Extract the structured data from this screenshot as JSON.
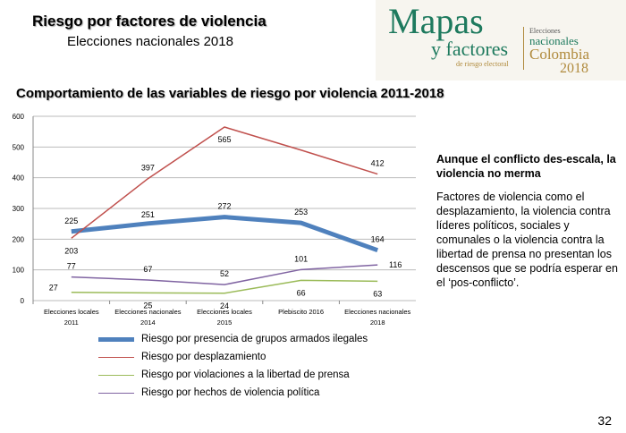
{
  "header": {
    "title": "Riesgo por factores de violencia",
    "subtitle": "Elecciones nacionales 2018"
  },
  "logo": {
    "line1": "Mapas",
    "line2": "y factores",
    "line3": "de riesgo electoral",
    "line4": "Elecciones",
    "line5": "nacionales",
    "line6": "Colombia",
    "line7": "2018"
  },
  "chart_data": {
    "type": "line",
    "title": "Comportamiento de las variables de riesgo por violencia 2011-2018",
    "categories": [
      [
        "Elecciones  locales",
        "2011"
      ],
      [
        "Elecciones nacionales",
        "2014"
      ],
      [
        "Elecciones  locales",
        "2015"
      ],
      [
        "Plebiscito 2016",
        ""
      ],
      [
        "Elecciones nacionales",
        "2018"
      ]
    ],
    "ylim": [
      0,
      600
    ],
    "yticks": [
      0,
      100,
      200,
      300,
      400,
      500,
      600
    ],
    "grid": true,
    "legend": "bottom",
    "series": [
      {
        "name": "Riesgo por presencia de grupos armados ilegales",
        "color": "#4f81bd",
        "width": 5,
        "values": [
          225,
          251,
          272,
          253,
          164
        ],
        "labels": [
          "225",
          "251",
          "272",
          "253",
          "164"
        ]
      },
      {
        "name": "Riesgo por desplazamiento",
        "color": "#c0504d",
        "width": 1.5,
        "values": [
          203,
          397,
          565,
          490,
          412
        ],
        "labels": [
          "203",
          "397",
          "565",
          "",
          "412"
        ]
      },
      {
        "name": "Riesgo por violaciones a la libertad de prensa",
        "color": "#9bbb59",
        "width": 1.5,
        "values": [
          27,
          25,
          24,
          66,
          63
        ],
        "labels": [
          "27",
          "25",
          "24",
          "66",
          "63"
        ]
      },
      {
        "name": "Riesgo por hechos de violencia política",
        "color": "#8064a2",
        "width": 1.5,
        "values": [
          77,
          67,
          52,
          101,
          116
        ],
        "labels": [
          "77",
          "67",
          "52",
          "101",
          "116"
        ]
      }
    ]
  },
  "side": {
    "heading": "Aunque el conflicto des-escala, la violencia no merma",
    "body": "Factores de violencia como el desplazamiento, la violencia contra líderes políticos, sociales y comunales o la violencia contra la libertad de prensa no presentan los descensos que se podría esperar en el ‘pos-conflicto’."
  },
  "page_number": "32"
}
